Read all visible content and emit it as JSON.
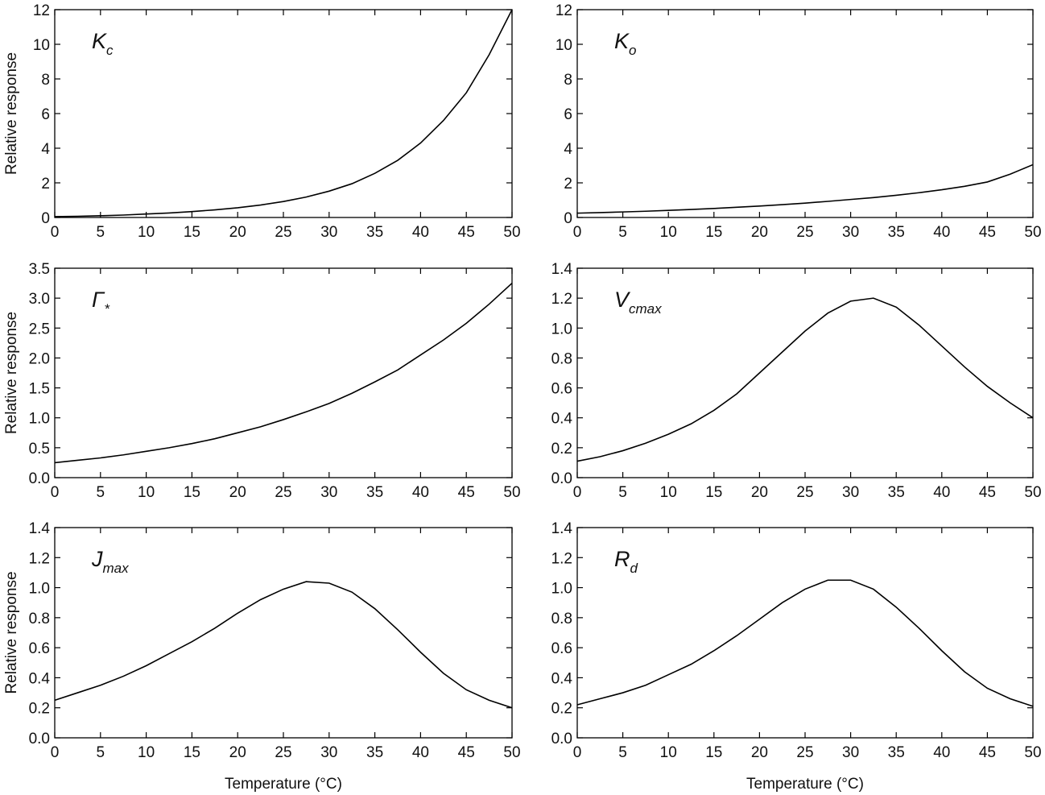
{
  "chart_data": [
    {
      "type": "line",
      "annotation": {
        "text": "K",
        "sub": "c"
      },
      "ylabel": "Relative response",
      "x": [
        0,
        2.5,
        5,
        7.5,
        10,
        12.5,
        15,
        17.5,
        20,
        22.5,
        25,
        27.5,
        30,
        32.5,
        35,
        37.5,
        40,
        42.5,
        45,
        47.5,
        50
      ],
      "series": [
        {
          "color": "#000000",
          "values": [
            0.05,
            0.07,
            0.1,
            0.14,
            0.2,
            0.26,
            0.34,
            0.44,
            0.56,
            0.72,
            0.92,
            1.18,
            1.52,
            1.95,
            2.55,
            3.3,
            4.3,
            5.6,
            7.2,
            9.4,
            12.0
          ]
        }
      ],
      "xlim": [
        0,
        50
      ],
      "xticks": [
        0,
        5,
        10,
        15,
        20,
        25,
        30,
        35,
        40,
        45,
        50
      ],
      "ylim": [
        0,
        12
      ],
      "yticks": [
        0,
        2,
        4,
        6,
        8,
        10,
        12
      ]
    },
    {
      "type": "line",
      "annotation": {
        "text": "K",
        "sub": "o"
      },
      "x": [
        0,
        2.5,
        5,
        7.5,
        10,
        12.5,
        15,
        17.5,
        20,
        22.5,
        25,
        27.5,
        30,
        32.5,
        35,
        37.5,
        40,
        42.5,
        45,
        47.5,
        50
      ],
      "series": [
        {
          "color": "#000000",
          "values": [
            0.25,
            0.28,
            0.32,
            0.36,
            0.41,
            0.46,
            0.52,
            0.59,
            0.66,
            0.74,
            0.83,
            0.93,
            1.04,
            1.15,
            1.28,
            1.43,
            1.6,
            1.8,
            2.05,
            2.5,
            3.05
          ]
        }
      ],
      "xlim": [
        0,
        50
      ],
      "xticks": [
        0,
        5,
        10,
        15,
        20,
        25,
        30,
        35,
        40,
        45,
        50
      ],
      "ylim": [
        0,
        12
      ],
      "yticks": [
        0,
        2,
        4,
        6,
        8,
        10,
        12
      ]
    },
    {
      "type": "line",
      "annotation": {
        "text": "Γ",
        "sub": "*"
      },
      "ylabel": "Relative response",
      "x": [
        0,
        2.5,
        5,
        7.5,
        10,
        12.5,
        15,
        17.5,
        20,
        22.5,
        25,
        27.5,
        30,
        32.5,
        35,
        37.5,
        40,
        42.5,
        45,
        47.5,
        50
      ],
      "series": [
        {
          "color": "#000000",
          "values": [
            0.25,
            0.29,
            0.33,
            0.38,
            0.44,
            0.5,
            0.57,
            0.65,
            0.75,
            0.85,
            0.97,
            1.1,
            1.24,
            1.41,
            1.6,
            1.8,
            2.05,
            2.3,
            2.58,
            2.9,
            3.25
          ]
        }
      ],
      "xlim": [
        0,
        50
      ],
      "xticks": [
        0,
        5,
        10,
        15,
        20,
        25,
        30,
        35,
        40,
        45,
        50
      ],
      "ylim": [
        0,
        3.5
      ],
      "yticks": [
        {
          "value": 0,
          "label": "0.0"
        },
        0.5,
        {
          "value": 1,
          "label": "1.0"
        },
        1.5,
        {
          "value": 2,
          "label": "2.0"
        },
        2.5,
        {
          "value": 3,
          "label": "3.0"
        },
        3.5
      ]
    },
    {
      "type": "line",
      "annotation": {
        "text": "V",
        "sub": "cmax"
      },
      "x": [
        0,
        2.5,
        5,
        7.5,
        10,
        12.5,
        15,
        17.5,
        20,
        22.5,
        25,
        27.5,
        30,
        32.5,
        35,
        37.5,
        40,
        42.5,
        45,
        47.5,
        50
      ],
      "series": [
        {
          "color": "#000000",
          "values": [
            0.11,
            0.14,
            0.18,
            0.23,
            0.29,
            0.36,
            0.45,
            0.56,
            0.7,
            0.84,
            0.98,
            1.1,
            1.18,
            1.2,
            1.14,
            1.02,
            0.88,
            0.74,
            0.61,
            0.5,
            0.4
          ]
        }
      ],
      "xlim": [
        0,
        50
      ],
      "xticks": [
        0,
        5,
        10,
        15,
        20,
        25,
        30,
        35,
        40,
        45,
        50
      ],
      "ylim": [
        0,
        1.4
      ],
      "yticks": [
        {
          "value": 0,
          "label": "0.0"
        },
        0.2,
        0.4,
        0.6,
        0.8,
        {
          "value": 1,
          "label": "1.0"
        },
        1.2,
        1.4
      ]
    },
    {
      "type": "line",
      "annotation": {
        "text": "J",
        "sub": "max"
      },
      "ylabel": "Relative response",
      "xlabel": "Temperature (°C)",
      "x": [
        0,
        2.5,
        5,
        7.5,
        10,
        12.5,
        15,
        17.5,
        20,
        22.5,
        25,
        27.5,
        30,
        32.5,
        35,
        37.5,
        40,
        42.5,
        45,
        47.5,
        50
      ],
      "series": [
        {
          "color": "#000000",
          "values": [
            0.25,
            0.3,
            0.35,
            0.41,
            0.48,
            0.56,
            0.64,
            0.73,
            0.83,
            0.92,
            0.99,
            1.04,
            1.03,
            0.97,
            0.86,
            0.72,
            0.57,
            0.43,
            0.32,
            0.25,
            0.2
          ]
        }
      ],
      "xlim": [
        0,
        50
      ],
      "xticks": [
        0,
        5,
        10,
        15,
        20,
        25,
        30,
        35,
        40,
        45,
        50
      ],
      "ylim": [
        0,
        1.4
      ],
      "yticks": [
        {
          "value": 0,
          "label": "0.0"
        },
        0.2,
        0.4,
        0.6,
        0.8,
        {
          "value": 1,
          "label": "1.0"
        },
        1.2,
        1.4
      ]
    },
    {
      "type": "line",
      "annotation": {
        "text": "R",
        "sub": "d"
      },
      "xlabel": "Temperature (°C)",
      "x": [
        0,
        2.5,
        5,
        7.5,
        10,
        12.5,
        15,
        17.5,
        20,
        22.5,
        25,
        27.5,
        30,
        32.5,
        35,
        37.5,
        40,
        42.5,
        45,
        47.5,
        50
      ],
      "series": [
        {
          "color": "#000000",
          "values": [
            0.22,
            0.26,
            0.3,
            0.35,
            0.42,
            0.49,
            0.58,
            0.68,
            0.79,
            0.9,
            0.99,
            1.05,
            1.05,
            0.99,
            0.87,
            0.73,
            0.58,
            0.44,
            0.33,
            0.26,
            0.21
          ]
        }
      ],
      "xlim": [
        0,
        50
      ],
      "xticks": [
        0,
        5,
        10,
        15,
        20,
        25,
        30,
        35,
        40,
        45,
        50
      ],
      "ylim": [
        0,
        1.4
      ],
      "yticks": [
        {
          "value": 0,
          "label": "0.0"
        },
        0.2,
        0.4,
        0.6,
        0.8,
        {
          "value": 1,
          "label": "1.0"
        },
        1.2,
        1.4
      ]
    }
  ]
}
